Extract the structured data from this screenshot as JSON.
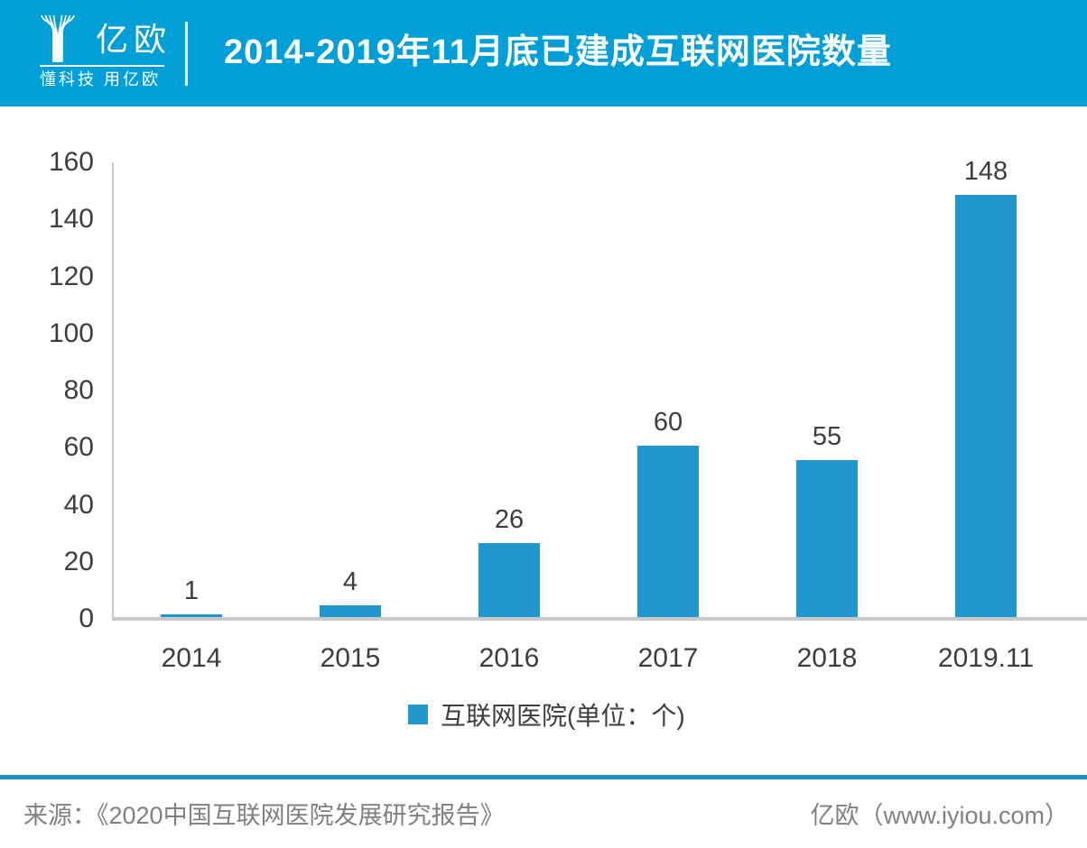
{
  "header": {
    "logo_text": "亿欧",
    "logo_tagline": "懂科技 用亿欧",
    "title": "2014-2019年11月底已建成互联网医院数量"
  },
  "chart_data": {
    "type": "bar",
    "title": "2014-2019年11月底已建成互联网医院数量",
    "categories": [
      "2014",
      "2015",
      "2016",
      "2017",
      "2018",
      "2019.11"
    ],
    "values": [
      1,
      4,
      26,
      60,
      55,
      148
    ],
    "series_name": "互联网医院",
    "legend": [
      "互联网医院(单位：个)"
    ],
    "legend_position": "bottom",
    "xlabel": "",
    "ylabel": "",
    "ylim": [
      0,
      160
    ],
    "yticks": [
      0,
      20,
      40,
      60,
      80,
      100,
      120,
      140,
      160
    ],
    "grid": false,
    "value_labels": true,
    "bar_color": "#2098CD"
  },
  "footer": {
    "source": "来源：《2020中国互联网医院发展研究报告》",
    "brand": "亿欧（www.iyiou.com）"
  },
  "colors": {
    "banner": "#009FD8",
    "bar": "#2098CD",
    "divider": "#2191C4",
    "axis": "#C9C9C9",
    "label": "#3D3D3D",
    "footer_text": "#808080"
  }
}
